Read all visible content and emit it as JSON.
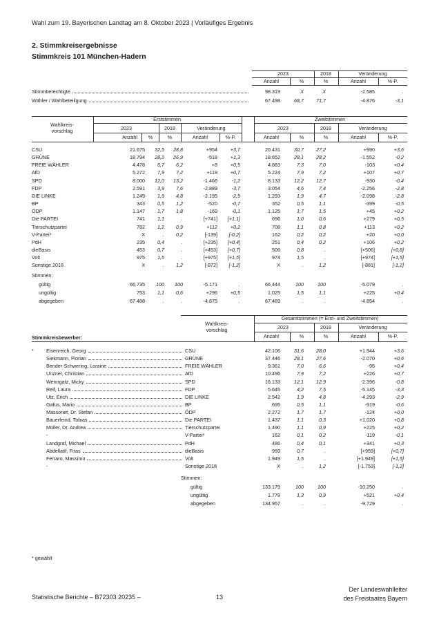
{
  "header": {
    "title": "Wahl zum 19. Bayerischen Landtag am 8. Oktober 2023 | Vorläufiges Ergebnis"
  },
  "section": {
    "title": "2. Stimmkreisergebnisse",
    "subtitle": "Stimmkreis 101 München-Hadern"
  },
  "table1": {
    "group_headers": [
      "2023",
      "2018",
      "Veränderung"
    ],
    "sub_headers": [
      "Anzahl",
      "%",
      "%",
      "Anzahl",
      "%-P."
    ],
    "rows": [
      {
        "label": "Stimmberechtigte",
        "values": [
          "98.319",
          "X",
          "X",
          "-2.585",
          "."
        ]
      },
      {
        "label": "Wähler / Wahlbeteiligung",
        "values": [
          "67.498",
          "68,7",
          "71,7",
          "-4.876",
          "-3,1"
        ]
      }
    ]
  },
  "table2": {
    "row_header": [
      "Wahlkreis-",
      "vorschlag"
    ],
    "section_titles": [
      "Erststimmen",
      "Zweitstimmen"
    ],
    "group_headers": [
      "2023",
      "2018",
      "Veränderung"
    ],
    "sub_headers": [
      "Anzahl",
      "%",
      "%",
      "Anzahl",
      "%-P."
    ],
    "rows": [
      {
        "label": "CSU",
        "values": [
          "21.675",
          "32,5",
          "28,8",
          "+954",
          "+3,7",
          "20.431",
          "30,7",
          "27,2",
          "+990",
          "+3,6"
        ]
      },
      {
        "label": "GRÜNE",
        "values": [
          "18.794",
          "28,2",
          "26,9",
          "-518",
          "+1,3",
          "18.652",
          "28,1",
          "28,2",
          "-1.552",
          "-0,2"
        ]
      },
      {
        "label": "FREIE WÄHLER",
        "values": [
          "4.478",
          "6,7",
          "6,2",
          "+8",
          "+0,5",
          "4.883",
          "7,3",
          "7,0",
          "-103",
          "+0,4"
        ]
      },
      {
        "label": "AfD",
        "values": [
          "5.272",
          "7,9",
          "7,2",
          "+119",
          "+0,7",
          "5.224",
          "7,9",
          "7,2",
          "+107",
          "+0,7"
        ]
      },
      {
        "label": "SPD",
        "values": [
          "8.000",
          "12,0",
          "13,2",
          "-1.466",
          "-1,2",
          "8.133",
          "12,2",
          "12,7",
          "-930",
          "-0,4"
        ]
      },
      {
        "label": "FDP",
        "values": [
          "2.591",
          "3,9",
          "7,6",
          "-2.889",
          "-3,7",
          "3.054",
          "4,6",
          "7,4",
          "-2.256",
          "-2,8"
        ]
      },
      {
        "label": "DIE LINKE",
        "values": [
          "1.249",
          "1,9",
          "4,8",
          "-2.195",
          "-2,9",
          "1.293",
          "1,9",
          "4,7",
          "-2.098",
          "-2,8"
        ]
      },
      {
        "label": "BP",
        "values": [
          "343",
          "0,5",
          "1,2",
          "-520",
          "-0,7",
          "352",
          "0,5",
          "1,1",
          "-399",
          "-0,5"
        ]
      },
      {
        "label": "ÖDP",
        "values": [
          "1.147",
          "1,7",
          "1,8",
          "-169",
          "-0,1",
          "1.125",
          "1,7",
          "1,5",
          "+45",
          "+0,2"
        ]
      },
      {
        "label": "Die PARTEI",
        "values": [
          "741",
          "1,1",
          ".",
          "[+741]",
          "[+1,1]",
          "696",
          "1,0",
          "0,6",
          "+279",
          "+0,5"
        ]
      },
      {
        "label": "Tierschutzpartei",
        "values": [
          "782",
          "1,2",
          "0,9",
          "+112",
          "+0,2",
          "708",
          "1,1",
          "0,8",
          "+113",
          "+0,2"
        ]
      },
      {
        "label": "V-Partei³",
        "values": [
          "X",
          ".",
          "0,2",
          "[-139]",
          "[-0,2]",
          "162",
          "0,2",
          "0,2",
          "+20",
          "+0,0"
        ]
      },
      {
        "label": "PdH",
        "values": [
          "235",
          "0,4",
          ".",
          "[+235]",
          "[+0,4]",
          "251",
          "0,4",
          "0,2",
          "+106",
          "+0,2"
        ]
      },
      {
        "label": "dieBasis",
        "values": [
          "453",
          "0,7",
          ".",
          "[+453]",
          "[+0,7]",
          "506",
          "0,8",
          ".",
          "[+506]",
          "[+0,8]"
        ]
      },
      {
        "label": "Volt",
        "values": [
          "975",
          "1,5",
          ".",
          "[+975]",
          "[+1,5]",
          "974",
          "1,5",
          ".",
          "[+974]",
          "[+1,5]"
        ]
      },
      {
        "label": "Sonstige 2018",
        "values": [
          "X",
          ".",
          "1,2",
          "[-872]",
          "[-1,2]",
          "X",
          ".",
          "1,2",
          "[-881]",
          "[-1,2]"
        ]
      }
    ],
    "votes_label": "Stimmen:",
    "vote_rows": [
      {
        "label": "gültig",
        "values": [
          "66.735",
          "100",
          "100",
          "-5.171",
          ".",
          "66.444",
          "100",
          "100",
          "-5.079",
          "."
        ]
      },
      {
        "label": "ungültig",
        "values": [
          "753",
          "1,1",
          "0,6",
          "+296",
          "+0,5",
          "1.025",
          "1,5",
          "1,1",
          "+225",
          "+0,4"
        ]
      },
      {
        "label": "abgegeben",
        "values": [
          "67.488",
          ".",
          ".",
          "-4.875",
          ".",
          "67.469",
          ".",
          ".",
          "-4.854",
          "."
        ]
      }
    ]
  },
  "table3": {
    "title": "Gesamtstimmen (= Erst- und Zweitstimmen)",
    "row_header": [
      "Wahlkreis-",
      "vorschlag"
    ],
    "candidates_label": "Stimmkreisbewerber:",
    "group_headers": [
      "2023",
      "2018",
      "Veränderung"
    ],
    "sub_headers": [
      "Anzahl",
      "%",
      "%",
      "Anzahl",
      "%-P."
    ],
    "rows": [
      {
        "marker": "*",
        "candidate": "Eisenreich, Georg",
        "party": "CSU",
        "values": [
          "42.106",
          "31,6",
          "28,0",
          "+1.944",
          "+3,6"
        ]
      },
      {
        "candidate": "Siekmann, Florian",
        "party": "GRÜNE",
        "values": [
          "37.446",
          "28,1",
          "27,6",
          "-2.070",
          "+0,6"
        ]
      },
      {
        "candidate": "Bender-Schwering, Loraine",
        "party": "FREIE WÄHLER",
        "values": [
          "9.361",
          "7,0",
          "6,6",
          "-95",
          "+0,4"
        ]
      },
      {
        "candidate": "Unzner, Christian",
        "party": "AfD",
        "values": [
          "10.496",
          "7,9",
          "7,2",
          "+226",
          "+0,7"
        ]
      },
      {
        "candidate": "Wenngatz, Micky",
        "party": "SPD",
        "values": [
          "16.133",
          "12,1",
          "12,9",
          "-2.396",
          "-0,8"
        ]
      },
      {
        "candidate": "Reif, Laura",
        "party": "FDP",
        "values": [
          "5.645",
          "4,2",
          "7,5",
          "-5.145",
          "-3,3"
        ]
      },
      {
        "candidate": "Utz, Erich",
        "party": "DIE LINKE",
        "values": [
          "2.542",
          "1,9",
          "4,8",
          "-4.293",
          "-2,9"
        ]
      },
      {
        "candidate": "Gafus, Mario",
        "party": "BP",
        "values": [
          "695",
          "0,5",
          "1,1",
          "-919",
          "-0,6"
        ]
      },
      {
        "candidate": "Massonet, Dr. Stefan",
        "party": "ÖDP",
        "values": [
          "2.272",
          "1,7",
          "1,7",
          "-124",
          "+0,0"
        ]
      },
      {
        "candidate": "Bauerfeind, Tobias",
        "party": "Die PARTEI",
        "values": [
          "1.437",
          "1,1",
          "0,3",
          "+1.020",
          "+0,8"
        ]
      },
      {
        "candidate": "Müller, Dr. Andrea",
        "party": "Tierschutzpartei",
        "values": [
          "1.490",
          "1,1",
          "0,9",
          "+225",
          "+0,2"
        ]
      },
      {
        "candidate": "-",
        "party": "V-Partei³",
        "values": [
          "162",
          "0,1",
          "0,2",
          "-119",
          "-0,1"
        ]
      },
      {
        "candidate": "Landgraf, Michael",
        "party": "PdH",
        "values": [
          "486",
          "0,4",
          "0,1",
          "+341",
          "+0,3"
        ]
      },
      {
        "candidate": "Abdellatif, Firas",
        "party": "dieBasis",
        "values": [
          "959",
          "0,7",
          ".",
          "[+959]",
          "[+0,7]"
        ]
      },
      {
        "candidate": "Ferraro, Massimo",
        "party": "Volt",
        "values": [
          "1.949",
          "1,5",
          ".",
          "[+1.949]",
          "[+1,5]"
        ]
      },
      {
        "candidate": "-",
        "party": "Sonstige 2018",
        "values": [
          "X",
          ".",
          "1,2",
          "[-1.753]",
          "[-1,2]"
        ]
      }
    ],
    "votes_label": "Stimmen:",
    "vote_rows": [
      {
        "label": "gültig",
        "values": [
          "133.179",
          "100",
          "100",
          "-10.250",
          "."
        ]
      },
      {
        "label": "ungültig",
        "values": [
          "1.778",
          "1,3",
          "0,9",
          "+521",
          "+0,4"
        ]
      },
      {
        "label": "abgegeben",
        "values": [
          "134.957",
          ".",
          ".",
          "-9.729",
          "."
        ]
      }
    ]
  },
  "footnote": "* gewählt",
  "footer": {
    "left": "Statistische Berichte – B72303 20235 –",
    "page": "13",
    "right": [
      "Der Landeswahlleiter",
      "des Freistaates Bayern"
    ]
  }
}
